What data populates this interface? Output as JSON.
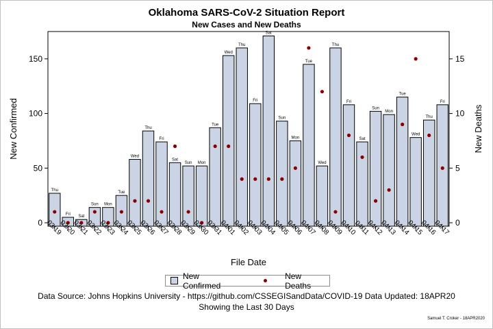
{
  "title": "Oklahoma SARS-CoV-2 Situation Report",
  "subtitle": "New Cases and New Deaths",
  "footer": {
    "source": "Data Source: Johns Hopkins University - https://github.com/CSSEGISandData/COVID-19 Data Updated: 18APR20",
    "window": "Showing the Last 30 Days",
    "credit": "Samuel T. Croker - 18APR2020"
  },
  "legend": {
    "cases": "New Confirmed",
    "deaths": "New Deaths"
  },
  "colors": {
    "bar_fill": "#cad4e5",
    "bar_stroke": "#000000",
    "death_marker": "#8b0000"
  },
  "chart_data": {
    "type": "bar",
    "xlabel": "File Date",
    "ylabel": "New Confirmed",
    "y2label": "New Deaths",
    "ylim": [
      0,
      175
    ],
    "y2lim": [
      0,
      17.5
    ],
    "yticks": [
      0,
      50,
      100,
      150
    ],
    "y2ticks": [
      0,
      5,
      10,
      15
    ],
    "grid": false,
    "legend_position": "bottom",
    "categories": [
      "03/19",
      "03/20",
      "03/21",
      "03/22",
      "03/23",
      "03/24",
      "03/25",
      "03/26",
      "03/27",
      "03/28",
      "03/29",
      "03/30",
      "03/31",
      "04/01",
      "04/02",
      "04/03",
      "04/04",
      "04/05",
      "04/06",
      "04/07",
      "04/08",
      "04/09",
      "04/10",
      "04/11",
      "04/12",
      "04/13",
      "04/14",
      "04/15",
      "04/16",
      "04/17"
    ],
    "weekdays": [
      "Thu",
      "Fri",
      "Sat",
      "Sun",
      "Mon",
      "Tue",
      "Wed",
      "Thu",
      "Fri",
      "Sat",
      "Sun",
      "Mon",
      "Tue",
      "Wed",
      "Thu",
      "Fri",
      "Sat",
      "Sun",
      "Mon",
      "Tue",
      "Wed",
      "Thu",
      "Fri",
      "Sat",
      "Sun",
      "Mon",
      "Tue",
      "Wed",
      "Thu",
      "Fri"
    ],
    "series": [
      {
        "name": "New Confirmed",
        "type": "bar",
        "axis": "left",
        "values": [
          27,
          5,
          3,
          14,
          14,
          25,
          58,
          84,
          74,
          55,
          52,
          52,
          87,
          153,
          160,
          109,
          171,
          93,
          75,
          145,
          52,
          160,
          108,
          74,
          102,
          99,
          115,
          78,
          94,
          108
        ]
      },
      {
        "name": "New Deaths",
        "type": "scatter",
        "axis": "right",
        "values": [
          1,
          0,
          0,
          1,
          0,
          1,
          2,
          2,
          1,
          7,
          1,
          0,
          7,
          7,
          4,
          4,
          4,
          4,
          5,
          16,
          12,
          1,
          8,
          6,
          2,
          3,
          9,
          15,
          8,
          5
        ]
      }
    ]
  }
}
